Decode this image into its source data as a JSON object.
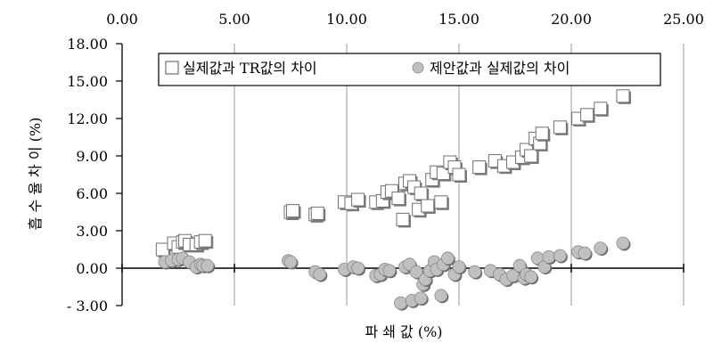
{
  "chart_data": {
    "type": "scatter",
    "title": "",
    "xlabel": "파 쇄 값 (%)",
    "ylabel": "흡 수 율 차 이 (%)",
    "xlim": [
      0,
      25
    ],
    "ylim": [
      -3,
      18
    ],
    "x_ticks": [
      "0.00",
      "5.00",
      "10.00",
      "15.00",
      "20.00",
      "25.00"
    ],
    "y_ticks": [
      "18.00",
      "15.00",
      "12.00",
      "9.00",
      "6.00",
      "3.00",
      "0.00",
      "- 3.00"
    ],
    "x_axis_position": "top",
    "grid": "vertical",
    "legend_position": "top",
    "series": [
      {
        "name": "실제값과 TR값의 차이",
        "marker": "open-square",
        "color": "#ffffff",
        "points": [
          [
            1.8,
            1.5
          ],
          [
            2.3,
            2.0
          ],
          [
            2.5,
            1.7
          ],
          [
            2.7,
            2.1
          ],
          [
            2.8,
            2.2
          ],
          [
            3.0,
            1.9
          ],
          [
            3.3,
            1.9
          ],
          [
            3.5,
            2.1
          ],
          [
            3.7,
            2.2
          ],
          [
            7.5,
            4.5
          ],
          [
            7.6,
            4.6
          ],
          [
            8.6,
            4.3
          ],
          [
            8.7,
            4.4
          ],
          [
            9.9,
            5.3
          ],
          [
            10.2,
            5.2
          ],
          [
            10.5,
            5.5
          ],
          [
            11.3,
            5.3
          ],
          [
            11.6,
            5.4
          ],
          [
            11.8,
            6.1
          ],
          [
            12.0,
            6.2
          ],
          [
            12.3,
            5.6
          ],
          [
            12.5,
            3.9
          ],
          [
            12.6,
            6.8
          ],
          [
            12.8,
            7.0
          ],
          [
            13.0,
            6.5
          ],
          [
            13.2,
            4.7
          ],
          [
            13.3,
            6.0
          ],
          [
            13.6,
            5.0
          ],
          [
            13.8,
            7.1
          ],
          [
            14.0,
            7.7
          ],
          [
            14.2,
            5.3
          ],
          [
            14.3,
            7.6
          ],
          [
            14.6,
            8.5
          ],
          [
            14.8,
            8.1
          ],
          [
            15.0,
            7.5
          ],
          [
            15.9,
            8.1
          ],
          [
            16.6,
            8.6
          ],
          [
            17.0,
            8.2
          ],
          [
            17.4,
            8.5
          ],
          [
            17.8,
            8.9
          ],
          [
            18.0,
            9.5
          ],
          [
            18.2,
            9.0
          ],
          [
            18.4,
            10.4
          ],
          [
            18.6,
            10.0
          ],
          [
            18.7,
            10.8
          ],
          [
            19.5,
            11.3
          ],
          [
            20.3,
            12.0
          ],
          [
            20.7,
            12.3
          ],
          [
            21.3,
            12.8
          ],
          [
            22.3,
            13.8
          ]
        ]
      },
      {
        "name": "제안값과 실제값의 차이",
        "marker": "filled-circle",
        "color": "#c0c0c0",
        "points": [
          [
            1.9,
            0.5
          ],
          [
            2.2,
            0.6
          ],
          [
            2.5,
            0.7
          ],
          [
            2.7,
            0.8
          ],
          [
            3.0,
            0.5
          ],
          [
            3.3,
            0.1
          ],
          [
            3.5,
            0.3
          ],
          [
            3.6,
            0.2
          ],
          [
            3.8,
            0.2
          ],
          [
            7.4,
            0.6
          ],
          [
            7.5,
            0.5
          ],
          [
            8.6,
            -0.3
          ],
          [
            8.8,
            -0.5
          ],
          [
            9.9,
            -0.1
          ],
          [
            10.3,
            0.1
          ],
          [
            10.5,
            0.0
          ],
          [
            11.3,
            -0.6
          ],
          [
            11.5,
            -0.5
          ],
          [
            11.7,
            -0.1
          ],
          [
            11.9,
            -0.2
          ],
          [
            12.4,
            -2.8
          ],
          [
            12.6,
            0.1
          ],
          [
            12.8,
            0.3
          ],
          [
            12.9,
            -2.6
          ],
          [
            13.1,
            -0.3
          ],
          [
            13.3,
            -2.4
          ],
          [
            13.4,
            -1.3
          ],
          [
            13.5,
            -0.9
          ],
          [
            13.7,
            -0.2
          ],
          [
            13.9,
            0.5
          ],
          [
            14.0,
            -0.1
          ],
          [
            14.2,
            -2.2
          ],
          [
            14.3,
            0.3
          ],
          [
            14.5,
            0.8
          ],
          [
            14.8,
            -0.5
          ],
          [
            15.0,
            0.1
          ],
          [
            15.7,
            -0.3
          ],
          [
            16.4,
            -0.2
          ],
          [
            16.8,
            -0.5
          ],
          [
            17.1,
            -0.9
          ],
          [
            17.4,
            -0.6
          ],
          [
            17.7,
            0.2
          ],
          [
            17.9,
            -0.8
          ],
          [
            18.0,
            -0.5
          ],
          [
            18.2,
            -0.7
          ],
          [
            18.5,
            0.8
          ],
          [
            18.8,
            0.1
          ],
          [
            19.0,
            0.9
          ],
          [
            19.5,
            1.0
          ],
          [
            20.3,
            1.3
          ],
          [
            20.6,
            1.2
          ],
          [
            21.3,
            1.6
          ],
          [
            22.3,
            2.0
          ]
        ]
      }
    ]
  }
}
